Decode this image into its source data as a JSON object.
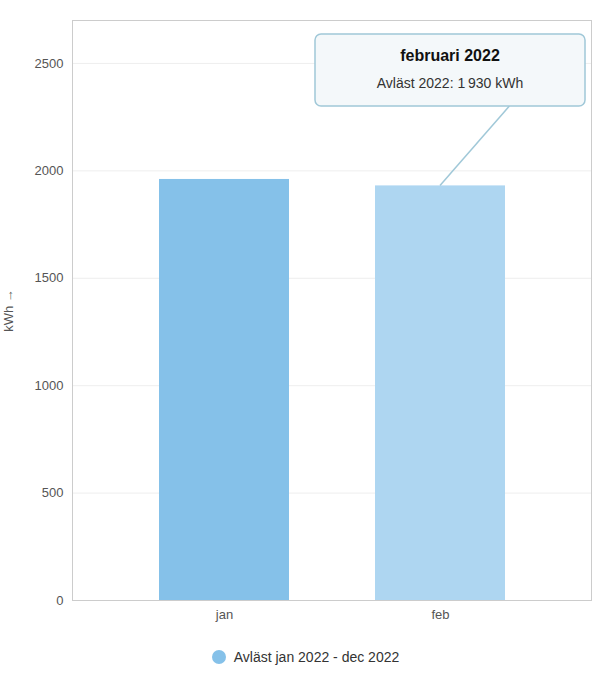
{
  "chart_data": {
    "type": "bar",
    "categories": [
      "jan",
      "feb"
    ],
    "series": [
      {
        "name": "Avläst jan 2022 - dec 2022",
        "color": "#85C1E9",
        "values": [
          1960,
          1930
        ]
      }
    ],
    "colors": [
      "#85C1E9",
      "#AED6F1"
    ],
    "ylabel": "kWh",
    "ylim": [
      0,
      2700
    ],
    "yticks": [
      0,
      500,
      1000,
      1500,
      2000,
      2500
    ],
    "grid": true,
    "legend": "bottom",
    "annotation": {
      "category": "feb",
      "title": "februari 2022",
      "text": "Avläst 2022: 1 930 kWh"
    }
  }
}
